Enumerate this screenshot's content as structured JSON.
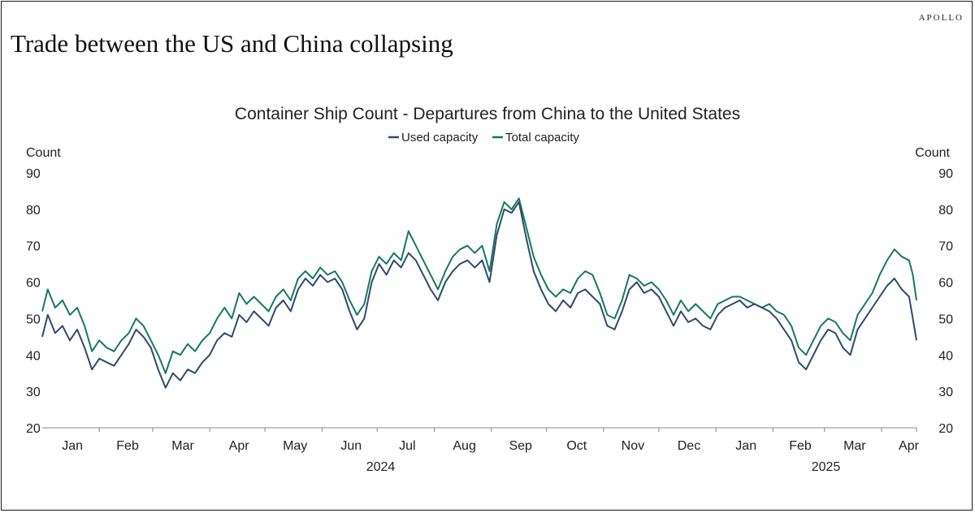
{
  "brand": "APOLLO",
  "headline": "Trade between the US and China collapsing",
  "chart_data": {
    "type": "line",
    "title": "Container Ship Count - Departures from China to the United States",
    "ylabel_left": "Count",
    "ylabel_right": "Count",
    "ylim": [
      20,
      90
    ],
    "yticks": [
      20,
      30,
      40,
      50,
      60,
      70,
      80,
      90
    ],
    "x_range": [
      "2024-01-01",
      "2025-04-20"
    ],
    "month_labels": [
      "Jan",
      "Feb",
      "Mar",
      "Apr",
      "May",
      "Jun",
      "Jul",
      "Aug",
      "Sep",
      "Oct",
      "Nov",
      "Dec",
      "Jan",
      "Feb",
      "Mar",
      "Apr"
    ],
    "year_labels": [
      "2024",
      "2025"
    ],
    "legend_position": "top-center",
    "grid": false,
    "series": [
      {
        "name": "Used capacity",
        "color": "#2e4a6e",
        "points": [
          [
            "2024-01-01",
            45
          ],
          [
            "2024-01-04",
            51
          ],
          [
            "2024-01-08",
            46
          ],
          [
            "2024-01-12",
            48
          ],
          [
            "2024-01-16",
            44
          ],
          [
            "2024-01-20",
            47
          ],
          [
            "2024-01-24",
            42
          ],
          [
            "2024-01-28",
            36
          ],
          [
            "2024-02-01",
            39
          ],
          [
            "2024-02-05",
            38
          ],
          [
            "2024-02-09",
            37
          ],
          [
            "2024-02-13",
            40
          ],
          [
            "2024-02-17",
            43
          ],
          [
            "2024-02-21",
            47
          ],
          [
            "2024-02-25",
            45
          ],
          [
            "2024-02-29",
            42
          ],
          [
            "2024-03-04",
            36
          ],
          [
            "2024-03-08",
            31
          ],
          [
            "2024-03-12",
            35
          ],
          [
            "2024-03-16",
            33
          ],
          [
            "2024-03-20",
            36
          ],
          [
            "2024-03-24",
            35
          ],
          [
            "2024-03-28",
            38
          ],
          [
            "2024-04-01",
            40
          ],
          [
            "2024-04-05",
            44
          ],
          [
            "2024-04-09",
            46
          ],
          [
            "2024-04-13",
            45
          ],
          [
            "2024-04-17",
            51
          ],
          [
            "2024-04-21",
            49
          ],
          [
            "2024-04-25",
            52
          ],
          [
            "2024-04-29",
            50
          ],
          [
            "2024-05-03",
            48
          ],
          [
            "2024-05-07",
            53
          ],
          [
            "2024-05-11",
            55
          ],
          [
            "2024-05-15",
            52
          ],
          [
            "2024-05-19",
            58
          ],
          [
            "2024-05-23",
            61
          ],
          [
            "2024-05-27",
            59
          ],
          [
            "2024-05-31",
            62
          ],
          [
            "2024-06-04",
            60
          ],
          [
            "2024-06-08",
            61
          ],
          [
            "2024-06-12",
            58
          ],
          [
            "2024-06-16",
            52
          ],
          [
            "2024-06-20",
            47
          ],
          [
            "2024-06-24",
            50
          ],
          [
            "2024-06-28",
            60
          ],
          [
            "2024-07-02",
            65
          ],
          [
            "2024-07-06",
            62
          ],
          [
            "2024-07-10",
            66
          ],
          [
            "2024-07-14",
            64
          ],
          [
            "2024-07-18",
            68
          ],
          [
            "2024-07-22",
            66
          ],
          [
            "2024-07-26",
            62
          ],
          [
            "2024-07-30",
            58
          ],
          [
            "2024-08-03",
            55
          ],
          [
            "2024-08-07",
            60
          ],
          [
            "2024-08-11",
            63
          ],
          [
            "2024-08-15",
            65
          ],
          [
            "2024-08-19",
            66
          ],
          [
            "2024-08-23",
            64
          ],
          [
            "2024-08-27",
            66
          ],
          [
            "2024-08-31",
            60
          ],
          [
            "2024-09-04",
            73
          ],
          [
            "2024-09-08",
            80
          ],
          [
            "2024-09-12",
            79
          ],
          [
            "2024-09-16",
            82
          ],
          [
            "2024-09-20",
            72
          ],
          [
            "2024-09-24",
            63
          ],
          [
            "2024-09-28",
            58
          ],
          [
            "2024-10-02",
            54
          ],
          [
            "2024-10-06",
            52
          ],
          [
            "2024-10-10",
            55
          ],
          [
            "2024-10-14",
            53
          ],
          [
            "2024-10-18",
            57
          ],
          [
            "2024-10-22",
            58
          ],
          [
            "2024-10-26",
            56
          ],
          [
            "2024-10-30",
            54
          ],
          [
            "2024-11-03",
            48
          ],
          [
            "2024-11-07",
            47
          ],
          [
            "2024-11-11",
            52
          ],
          [
            "2024-11-15",
            58
          ],
          [
            "2024-11-19",
            60
          ],
          [
            "2024-11-23",
            57
          ],
          [
            "2024-11-27",
            58
          ],
          [
            "2024-12-01",
            56
          ],
          [
            "2024-12-05",
            52
          ],
          [
            "2024-12-09",
            48
          ],
          [
            "2024-12-13",
            52
          ],
          [
            "2024-12-17",
            49
          ],
          [
            "2024-12-21",
            50
          ],
          [
            "2024-12-25",
            48
          ],
          [
            "2024-12-29",
            47
          ],
          [
            "2025-01-02",
            51
          ],
          [
            "2025-01-06",
            53
          ],
          [
            "2025-01-10",
            54
          ],
          [
            "2025-01-14",
            55
          ],
          [
            "2025-01-18",
            53
          ],
          [
            "2025-01-22",
            54
          ],
          [
            "2025-01-26",
            53
          ],
          [
            "2025-01-30",
            52
          ],
          [
            "2025-02-03",
            50
          ],
          [
            "2025-02-07",
            47
          ],
          [
            "2025-02-11",
            44
          ],
          [
            "2025-02-15",
            38
          ],
          [
            "2025-02-19",
            36
          ],
          [
            "2025-02-23",
            40
          ],
          [
            "2025-02-27",
            44
          ],
          [
            "2025-03-03",
            47
          ],
          [
            "2025-03-07",
            46
          ],
          [
            "2025-03-11",
            42
          ],
          [
            "2025-03-15",
            40
          ],
          [
            "2025-03-19",
            47
          ],
          [
            "2025-03-23",
            50
          ],
          [
            "2025-03-27",
            53
          ],
          [
            "2025-03-31",
            56
          ],
          [
            "2025-04-04",
            59
          ],
          [
            "2025-04-08",
            61
          ],
          [
            "2025-04-12",
            58
          ],
          [
            "2025-04-16",
            56
          ],
          [
            "2025-04-18",
            50
          ],
          [
            "2025-04-20",
            44
          ]
        ]
      },
      {
        "name": "Total capacity",
        "color": "#177860",
        "points": [
          [
            "2024-01-01",
            52
          ],
          [
            "2024-01-04",
            58
          ],
          [
            "2024-01-08",
            53
          ],
          [
            "2024-01-12",
            55
          ],
          [
            "2024-01-16",
            51
          ],
          [
            "2024-01-20",
            53
          ],
          [
            "2024-01-24",
            48
          ],
          [
            "2024-01-28",
            41
          ],
          [
            "2024-02-01",
            44
          ],
          [
            "2024-02-05",
            42
          ],
          [
            "2024-02-09",
            41
          ],
          [
            "2024-02-13",
            44
          ],
          [
            "2024-02-17",
            46
          ],
          [
            "2024-02-21",
            50
          ],
          [
            "2024-02-25",
            48
          ],
          [
            "2024-02-29",
            44
          ],
          [
            "2024-03-04",
            40
          ],
          [
            "2024-03-08",
            35
          ],
          [
            "2024-03-12",
            41
          ],
          [
            "2024-03-16",
            40
          ],
          [
            "2024-03-20",
            43
          ],
          [
            "2024-03-24",
            41
          ],
          [
            "2024-03-28",
            44
          ],
          [
            "2024-04-01",
            46
          ],
          [
            "2024-04-05",
            50
          ],
          [
            "2024-04-09",
            53
          ],
          [
            "2024-04-13",
            50
          ],
          [
            "2024-04-17",
            57
          ],
          [
            "2024-04-21",
            54
          ],
          [
            "2024-04-25",
            56
          ],
          [
            "2024-04-29",
            54
          ],
          [
            "2024-05-03",
            52
          ],
          [
            "2024-05-07",
            56
          ],
          [
            "2024-05-11",
            58
          ],
          [
            "2024-05-15",
            55
          ],
          [
            "2024-05-19",
            61
          ],
          [
            "2024-05-23",
            63
          ],
          [
            "2024-05-27",
            61
          ],
          [
            "2024-05-31",
            64
          ],
          [
            "2024-06-04",
            62
          ],
          [
            "2024-06-08",
            63
          ],
          [
            "2024-06-12",
            60
          ],
          [
            "2024-06-16",
            55
          ],
          [
            "2024-06-20",
            51
          ],
          [
            "2024-06-24",
            54
          ],
          [
            "2024-06-28",
            63
          ],
          [
            "2024-07-02",
            67
          ],
          [
            "2024-07-06",
            65
          ],
          [
            "2024-07-10",
            68
          ],
          [
            "2024-07-14",
            66
          ],
          [
            "2024-07-18",
            74
          ],
          [
            "2024-07-22",
            70
          ],
          [
            "2024-07-26",
            66
          ],
          [
            "2024-07-30",
            62
          ],
          [
            "2024-08-03",
            58
          ],
          [
            "2024-08-07",
            63
          ],
          [
            "2024-08-11",
            67
          ],
          [
            "2024-08-15",
            69
          ],
          [
            "2024-08-19",
            70
          ],
          [
            "2024-08-23",
            68
          ],
          [
            "2024-08-27",
            70
          ],
          [
            "2024-08-31",
            63
          ],
          [
            "2024-09-04",
            76
          ],
          [
            "2024-09-08",
            82
          ],
          [
            "2024-09-12",
            80
          ],
          [
            "2024-09-16",
            83
          ],
          [
            "2024-09-20",
            75
          ],
          [
            "2024-09-24",
            67
          ],
          [
            "2024-09-28",
            62
          ],
          [
            "2024-10-02",
            58
          ],
          [
            "2024-10-06",
            56
          ],
          [
            "2024-10-10",
            58
          ],
          [
            "2024-10-14",
            57
          ],
          [
            "2024-10-18",
            61
          ],
          [
            "2024-10-22",
            63
          ],
          [
            "2024-10-26",
            62
          ],
          [
            "2024-10-30",
            57
          ],
          [
            "2024-11-03",
            51
          ],
          [
            "2024-11-07",
            50
          ],
          [
            "2024-11-11",
            55
          ],
          [
            "2024-11-15",
            62
          ],
          [
            "2024-11-19",
            61
          ],
          [
            "2024-11-23",
            59
          ],
          [
            "2024-11-27",
            60
          ],
          [
            "2024-12-01",
            58
          ],
          [
            "2024-12-05",
            55
          ],
          [
            "2024-12-09",
            51
          ],
          [
            "2024-12-13",
            55
          ],
          [
            "2024-12-17",
            52
          ],
          [
            "2024-12-21",
            54
          ],
          [
            "2024-12-25",
            52
          ],
          [
            "2024-12-29",
            50
          ],
          [
            "2025-01-02",
            54
          ],
          [
            "2025-01-06",
            55
          ],
          [
            "2025-01-10",
            56
          ],
          [
            "2025-01-14",
            56
          ],
          [
            "2025-01-18",
            55
          ],
          [
            "2025-01-22",
            54
          ],
          [
            "2025-01-26",
            53
          ],
          [
            "2025-01-30",
            54
          ],
          [
            "2025-02-03",
            52
          ],
          [
            "2025-02-07",
            51
          ],
          [
            "2025-02-11",
            48
          ],
          [
            "2025-02-15",
            42
          ],
          [
            "2025-02-19",
            40
          ],
          [
            "2025-02-23",
            44
          ],
          [
            "2025-02-27",
            48
          ],
          [
            "2025-03-03",
            50
          ],
          [
            "2025-03-07",
            49
          ],
          [
            "2025-03-11",
            46
          ],
          [
            "2025-03-15",
            44
          ],
          [
            "2025-03-19",
            51
          ],
          [
            "2025-03-23",
            54
          ],
          [
            "2025-03-27",
            57
          ],
          [
            "2025-03-31",
            62
          ],
          [
            "2025-04-04",
            66
          ],
          [
            "2025-04-08",
            69
          ],
          [
            "2025-04-12",
            67
          ],
          [
            "2025-04-16",
            66
          ],
          [
            "2025-04-18",
            62
          ],
          [
            "2025-04-20",
            55
          ]
        ]
      }
    ]
  }
}
